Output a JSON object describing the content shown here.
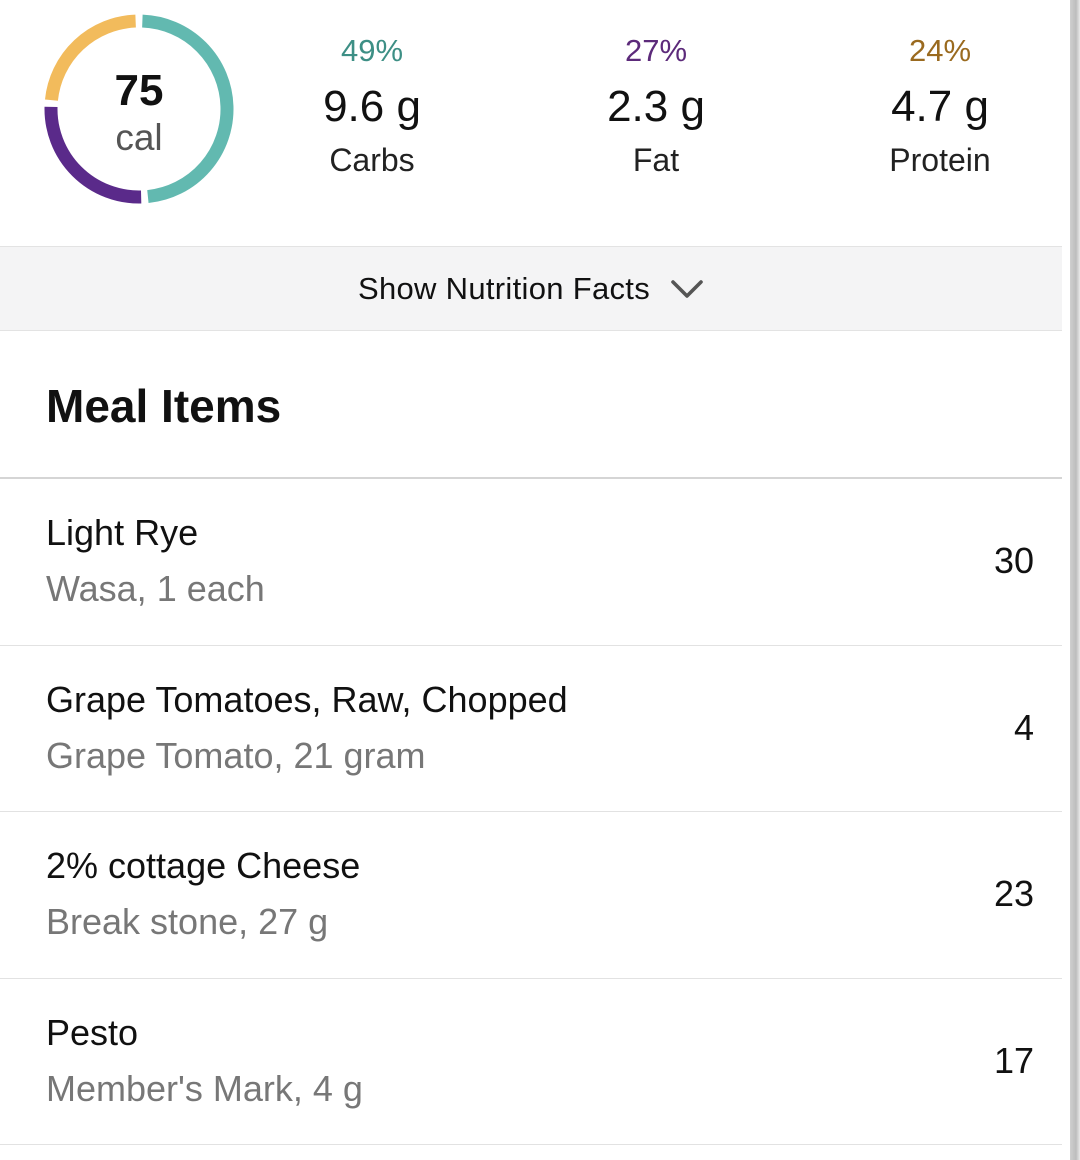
{
  "summary": {
    "calories": {
      "value": "75",
      "unit": "cal"
    },
    "ring": {
      "carbs_fraction": 0.49,
      "fat_fraction": 0.27,
      "protein_fraction": 0.24
    },
    "macros": [
      {
        "key": "carbs",
        "percent": "49%",
        "amount": "9.6 g",
        "label": "Carbs",
        "color": "#3d8f85"
      },
      {
        "key": "fat",
        "percent": "27%",
        "amount": "2.3 g",
        "label": "Fat",
        "color": "#5c2a7a"
      },
      {
        "key": "protein",
        "percent": "24%",
        "amount": "4.7 g",
        "label": "Protein",
        "color": "#9a6a1f"
      }
    ],
    "ring_colors": {
      "carbs": "#62b9b0",
      "fat": "#5a2a8a",
      "protein": "#f2bb5c"
    }
  },
  "nutrition_toggle": {
    "label": "Show Nutrition Facts",
    "icon": "chevron-down-icon"
  },
  "meal_items": {
    "title": "Meal Items",
    "items": [
      {
        "name": "Light Rye",
        "detail": "Wasa, 1 each",
        "calories": "30"
      },
      {
        "name": "Grape Tomatoes, Raw, Chopped",
        "detail": "Grape Tomato, 21 gram",
        "calories": "4"
      },
      {
        "name": "2% cottage Cheese",
        "detail": "Break stone, 27 g",
        "calories": "23"
      },
      {
        "name": "Pesto",
        "detail": "Member's Mark, 4 g",
        "calories": "17"
      }
    ]
  }
}
